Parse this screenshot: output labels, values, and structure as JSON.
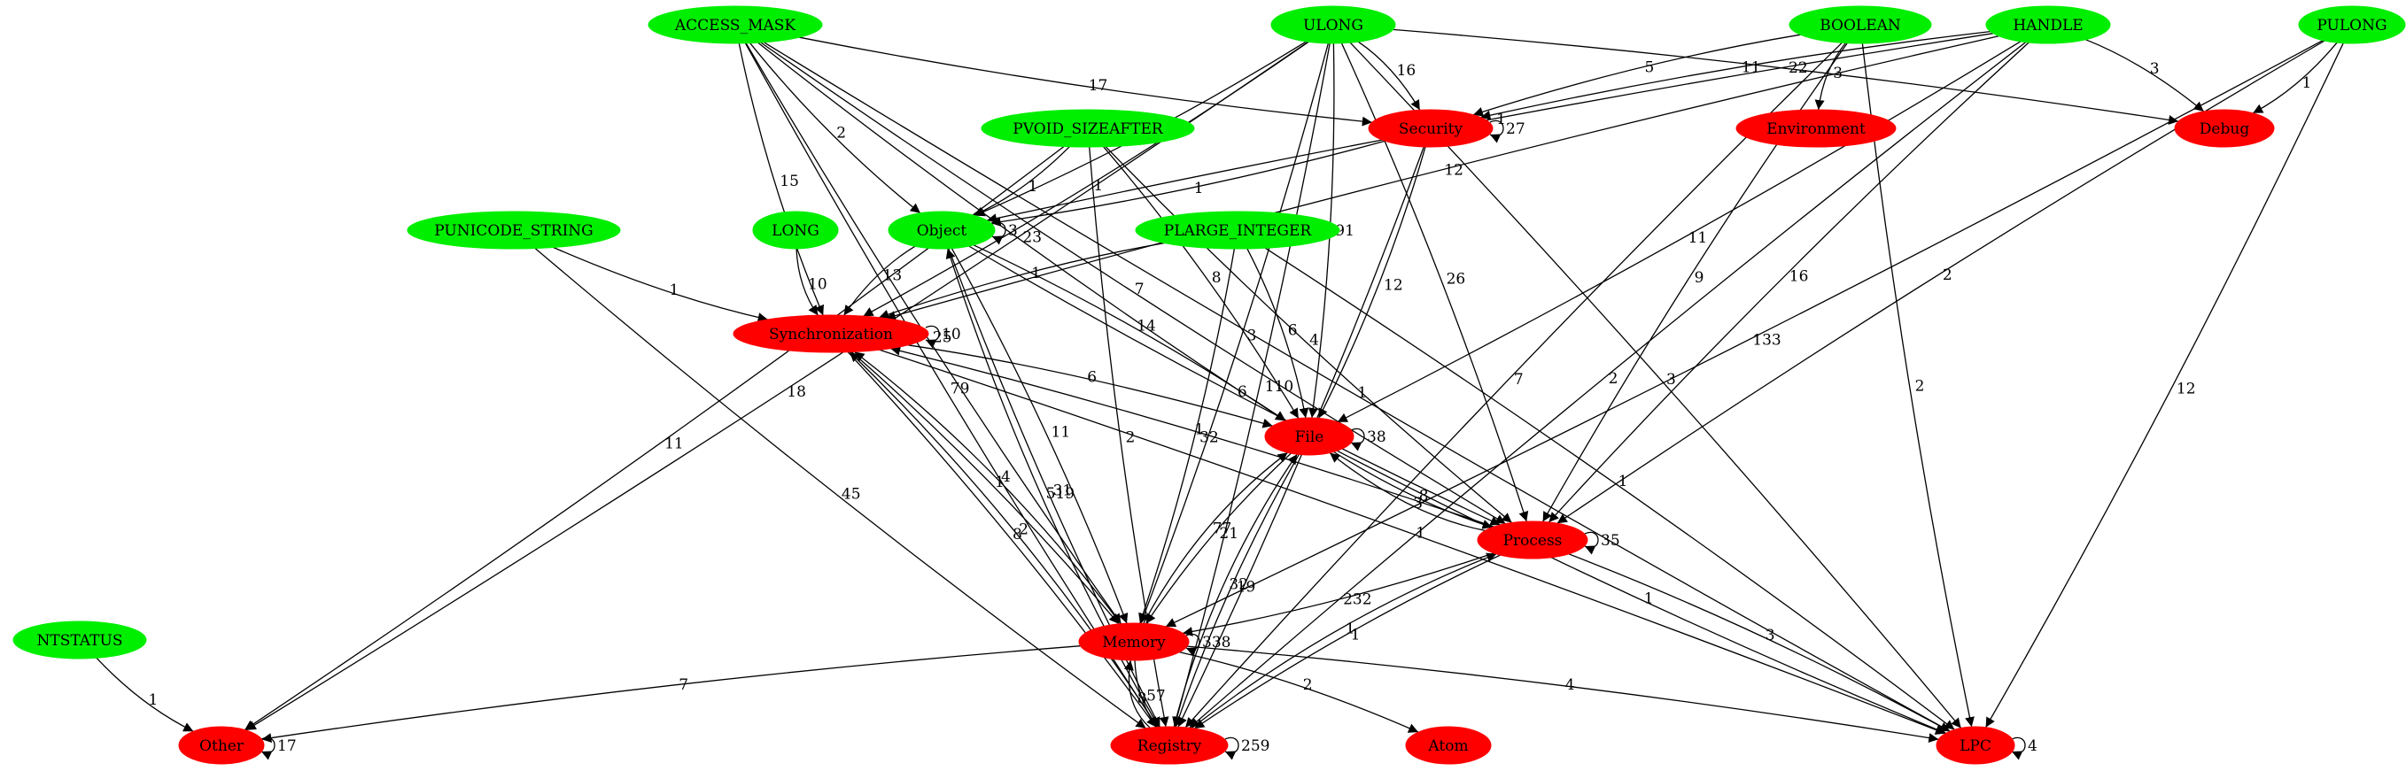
{
  "colors": {
    "type_node": "#00ee00",
    "category_node": "#ff0000",
    "edge": "#000000",
    "text": "#000000",
    "background": "#ffffff"
  },
  "nodes": [
    {
      "id": "ACCESS_MASK",
      "label": "ACCESS_MASK",
      "kind": "type"
    },
    {
      "id": "ULONG",
      "label": "ULONG",
      "kind": "type"
    },
    {
      "id": "BOOLEAN",
      "label": "BOOLEAN",
      "kind": "type"
    },
    {
      "id": "HANDLE",
      "label": "HANDLE",
      "kind": "type"
    },
    {
      "id": "PULONG",
      "label": "PULONG",
      "kind": "type"
    },
    {
      "id": "PVOID_SIZEAFTER",
      "label": "PVOID_SIZEAFTER",
      "kind": "type"
    },
    {
      "id": "PUNICODE_STRING",
      "label": "PUNICODE_STRING",
      "kind": "type"
    },
    {
      "id": "LONG",
      "label": "LONG",
      "kind": "type"
    },
    {
      "id": "Object",
      "label": "Object",
      "kind": "type"
    },
    {
      "id": "PLARGE_INTEGER",
      "label": "PLARGE_INTEGER",
      "kind": "type"
    },
    {
      "id": "NTSTATUS",
      "label": "NTSTATUS",
      "kind": "type"
    },
    {
      "id": "Security",
      "label": "Security",
      "kind": "category"
    },
    {
      "id": "Environment",
      "label": "Environment",
      "kind": "category"
    },
    {
      "id": "Debug",
      "label": "Debug",
      "kind": "category"
    },
    {
      "id": "Synchronization",
      "label": "Synchronization",
      "kind": "category"
    },
    {
      "id": "File",
      "label": "File",
      "kind": "category"
    },
    {
      "id": "Process",
      "label": "Process",
      "kind": "category"
    },
    {
      "id": "Memory",
      "label": "Memory",
      "kind": "category"
    },
    {
      "id": "Other",
      "label": "Other",
      "kind": "category"
    },
    {
      "id": "Registry",
      "label": "Registry",
      "kind": "category"
    },
    {
      "id": "Atom",
      "label": "Atom",
      "kind": "category"
    },
    {
      "id": "LPC",
      "label": "LPC",
      "kind": "category"
    }
  ],
  "edges": [
    {
      "from": "ACCESS_MASK",
      "to": "Security",
      "label": "17"
    },
    {
      "from": "ACCESS_MASK",
      "to": "Object",
      "label": "2"
    },
    {
      "from": "ACCESS_MASK",
      "to": "Synchronization",
      "label": "15"
    },
    {
      "from": "ACCESS_MASK",
      "to": "Memory",
      "label": "25"
    },
    {
      "from": "ACCESS_MASK",
      "to": "Registry",
      "label": "79"
    },
    {
      "from": "ACCESS_MASK",
      "to": "Process",
      "label": "7"
    },
    {
      "from": "ACCESS_MASK",
      "to": "LPC",
      "label": "1"
    },
    {
      "from": "ACCESS_MASK",
      "to": "File",
      "label": "23"
    },
    {
      "from": "ULONG",
      "to": "Security",
      "label": "16"
    },
    {
      "from": "ULONG",
      "to": "Object",
      "label": "4"
    },
    {
      "from": "ULONG",
      "to": "Synchronization",
      "label": "1"
    },
    {
      "from": "ULONG",
      "to": "File",
      "label": "91"
    },
    {
      "from": "ULONG",
      "to": "Memory",
      "label": "3"
    },
    {
      "from": "ULONG",
      "to": "Process",
      "label": "26"
    },
    {
      "from": "ULONG",
      "to": "Registry",
      "label": "110"
    },
    {
      "from": "ULONG",
      "to": "LPC",
      "label": "3"
    },
    {
      "from": "ULONG",
      "to": "Other",
      "label": "18"
    },
    {
      "from": "ULONG",
      "to": "Debug",
      "label": "22"
    },
    {
      "from": "BOOLEAN",
      "to": "Security",
      "label": "5"
    },
    {
      "from": "BOOLEAN",
      "to": "Environment",
      "label": "3"
    },
    {
      "from": "BOOLEAN",
      "to": "Process",
      "label": "9"
    },
    {
      "from": "BOOLEAN",
      "to": "Registry",
      "label": "7"
    },
    {
      "from": "BOOLEAN",
      "to": "LPC",
      "label": "2"
    },
    {
      "from": "HANDLE",
      "to": "Security",
      "label": "11"
    },
    {
      "from": "HANDLE",
      "to": "Debug",
      "label": "3"
    },
    {
      "from": "HANDLE",
      "to": "Object",
      "label": "1"
    },
    {
      "from": "HANDLE",
      "to": "File",
      "label": "11"
    },
    {
      "from": "HANDLE",
      "to": "Process",
      "label": "16"
    },
    {
      "from": "HANDLE",
      "to": "Registry",
      "label": "2"
    },
    {
      "from": "HANDLE",
      "to": "Synchronization",
      "label": "12"
    },
    {
      "from": "PULONG",
      "to": "Debug",
      "label": "1"
    },
    {
      "from": "PULONG",
      "to": "Process",
      "label": "2"
    },
    {
      "from": "PULONG",
      "to": "Memory",
      "label": "133"
    },
    {
      "from": "PULONG",
      "to": "LPC",
      "label": "12"
    },
    {
      "from": "PVOID_SIZEAFTER",
      "to": "Object",
      "label": "1"
    },
    {
      "from": "PVOID_SIZEAFTER",
      "to": "File",
      "label": "8"
    },
    {
      "from": "PVOID_SIZEAFTER",
      "to": "Process",
      "label": "4"
    },
    {
      "from": "PVOID_SIZEAFTER",
      "to": "Other",
      "label": "11"
    },
    {
      "from": "PVOID_SIZEAFTER",
      "to": "Registry",
      "label": "2"
    },
    {
      "from": "PUNICODE_STRING",
      "to": "Synchronization",
      "label": "1"
    },
    {
      "from": "PUNICODE_STRING",
      "to": "Registry",
      "label": "45"
    },
    {
      "from": "LONG",
      "to": "Synchronization",
      "label": "10"
    },
    {
      "from": "Object",
      "to": "Synchronization",
      "label": "13"
    },
    {
      "from": "Object",
      "to": "File",
      "label": "14"
    },
    {
      "from": "Object",
      "to": "Memory",
      "label": "11"
    },
    {
      "from": "Object",
      "to": "Process",
      "label": "6"
    },
    {
      "from": "Object",
      "to": "Registry",
      "label": "31"
    },
    {
      "from": "Registry",
      "to": "Object",
      "label": "519"
    },
    {
      "from": "PLARGE_INTEGER",
      "to": "Synchronization",
      "label": "1"
    },
    {
      "from": "PLARGE_INTEGER",
      "to": "File",
      "label": "6"
    },
    {
      "from": "PLARGE_INTEGER",
      "to": "Memory",
      "label": "32"
    },
    {
      "from": "PLARGE_INTEGER",
      "to": "LPC",
      "label": "1"
    },
    {
      "from": "Security",
      "to": "File",
      "label": "12"
    },
    {
      "from": "Security",
      "to": "Object",
      "label": "1"
    },
    {
      "from": "Security",
      "to": "Registry",
      "label": "16"
    },
    {
      "from": "Synchronization",
      "to": "File",
      "label": "6"
    },
    {
      "from": "Synchronization",
      "to": "Memory",
      "label": "1"
    },
    {
      "from": "Memory",
      "to": "Synchronization",
      "label": "4"
    },
    {
      "from": "Synchronization",
      "to": "Registry",
      "label": "8"
    },
    {
      "from": "Registry",
      "to": "Synchronization",
      "label": "2"
    },
    {
      "from": "Process",
      "to": "Synchronization",
      "label": "1"
    },
    {
      "from": "Synchronization",
      "to": "LPC",
      "label": "1"
    },
    {
      "from": "File",
      "to": "Memory",
      "label": "21"
    },
    {
      "from": "Memory",
      "to": "File",
      "label": "77"
    },
    {
      "from": "File",
      "to": "Registry",
      "label": "19"
    },
    {
      "from": "Registry",
      "to": "File",
      "label": "32"
    },
    {
      "from": "File",
      "to": "Process",
      "label": "8"
    },
    {
      "from": "Process",
      "to": "File",
      "label": "3"
    },
    {
      "from": "File",
      "to": "LPC",
      "label": "1"
    },
    {
      "from": "Process",
      "to": "Memory",
      "label": "232"
    },
    {
      "from": "Process",
      "to": "Registry",
      "label": "1"
    },
    {
      "from": "Registry",
      "to": "Process",
      "label": "1"
    },
    {
      "from": "Process",
      "to": "LPC",
      "label": "3"
    },
    {
      "from": "Memory",
      "to": "Registry",
      "label": "57"
    },
    {
      "from": "Registry",
      "to": "Memory",
      "label": "8"
    },
    {
      "from": "Memory",
      "to": "Other",
      "label": "7"
    },
    {
      "from": "Memory",
      "to": "Atom",
      "label": "2"
    },
    {
      "from": "Memory",
      "to": "LPC",
      "label": "4"
    },
    {
      "from": "NTSTATUS",
      "to": "Other",
      "label": "1"
    }
  ],
  "self_loops": [
    {
      "node": "Object",
      "label": "3"
    },
    {
      "node": "Security",
      "label": "27"
    },
    {
      "node": "Synchronization",
      "label": "10"
    },
    {
      "node": "File",
      "label": "38"
    },
    {
      "node": "Process",
      "label": "35"
    },
    {
      "node": "Memory",
      "label": "338"
    },
    {
      "node": "Registry",
      "label": "259"
    },
    {
      "node": "Other",
      "label": "17"
    },
    {
      "node": "LPC",
      "label": "4"
    }
  ]
}
